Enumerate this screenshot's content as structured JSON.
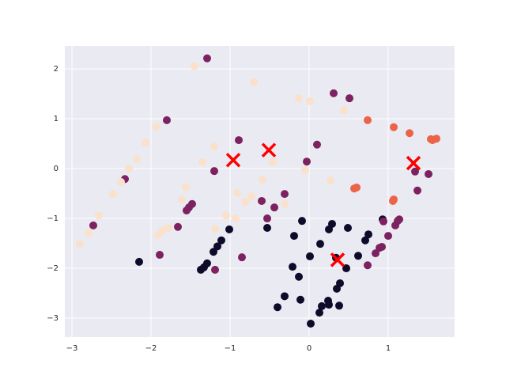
{
  "chart_data": {
    "type": "scatter",
    "xlim": [
      -3.09,
      1.84
    ],
    "ylim": [
      -3.38,
      2.46
    ],
    "xticks": [
      {
        "value": -3,
        "label": "−3"
      },
      {
        "value": -2,
        "label": "−2"
      },
      {
        "value": -1,
        "label": "−1"
      },
      0,
      1
    ],
    "yticks": [
      {
        "value": -3,
        "label": "−3"
      },
      {
        "value": -2,
        "label": "−2"
      },
      {
        "value": -1,
        "label": "−1"
      },
      0,
      1,
      2
    ],
    "grid": true,
    "series": [
      {
        "color": "#0d0b29",
        "marker": "o",
        "x": [
          -2.15,
          -1.37,
          -1.33,
          -1.29,
          -1.21,
          -1.16,
          -1.11,
          -1.01,
          -0.53,
          -0.09,
          -0.19,
          -0.21,
          -0.13,
          -0.31,
          -0.4,
          -0.11,
          0.02,
          0.01,
          0.14,
          0.25,
          0.29,
          0.49,
          0.13,
          0.16,
          0.24,
          0.25,
          0.35,
          0.39,
          0.38,
          0.47,
          0.34,
          0.62,
          0.71,
          0.75,
          0.93
        ],
        "y": [
          -1.87,
          -2.03,
          -1.98,
          -1.9,
          -1.67,
          -1.56,
          -1.44,
          -1.22,
          -1.19,
          -1.05,
          -1.35,
          -1.97,
          -2.17,
          -2.56,
          -2.78,
          -2.63,
          -3.11,
          -1.76,
          -1.51,
          -1.22,
          -1.11,
          -1.19,
          -2.89,
          -2.76,
          -2.65,
          -2.73,
          -2.41,
          -2.3,
          -2.75,
          -2.0,
          -1.79,
          -1.75,
          -1.44,
          -1.32,
          -1.02
        ]
      },
      {
        "color": "#7d2260",
        "marker": "o",
        "x": [
          -1.29,
          -1.8,
          -2.33,
          -2.73,
          -1.89,
          -1.66,
          -1.55,
          -1.52,
          -1.48,
          -1.2,
          -0.89,
          -0.6,
          -0.53,
          -0.44,
          -0.31,
          -0.85,
          -1.19,
          -0.03,
          0.1,
          0.31,
          0.51,
          0.74,
          0.84,
          0.89,
          0.92,
          0.94,
          1.0,
          1.09,
          1.12,
          1.14,
          1.34,
          1.37,
          1.51
        ],
        "y": [
          2.21,
          0.97,
          -0.21,
          -1.14,
          -1.73,
          -1.17,
          -0.84,
          -0.78,
          -0.71,
          -0.05,
          0.57,
          -0.65,
          -1.0,
          -0.78,
          -0.51,
          -1.78,
          -2.03,
          0.14,
          0.48,
          1.51,
          1.41,
          -1.94,
          -1.7,
          -1.59,
          -1.57,
          -1.06,
          -1.35,
          -1.14,
          -1.05,
          -1.02,
          -0.06,
          -0.44,
          -0.11
        ]
      },
      {
        "color": "#fae1cb",
        "marker": "o",
        "x": [
          -1.45,
          -0.7,
          -0.13,
          0.01,
          0.44,
          -1.93,
          -2.07,
          -2.18,
          -2.28,
          -2.38,
          -2.48,
          -2.66,
          -2.79,
          -2.9,
          -1.86,
          -1.78,
          -1.91,
          -1.56,
          -1.61,
          -1.35,
          -1.2,
          -1.05,
          -0.93,
          -1.19,
          -0.91,
          -0.81,
          -0.73,
          -0.59,
          -0.46,
          -0.31,
          -0.05,
          0.27
        ],
        "y": [
          2.05,
          1.73,
          1.41,
          1.35,
          1.17,
          0.84,
          0.52,
          0.19,
          0.0,
          -0.27,
          -0.51,
          -0.94,
          -1.29,
          -1.52,
          -1.25,
          -1.19,
          -1.33,
          -0.37,
          -0.62,
          0.13,
          0.44,
          -0.94,
          -1.0,
          -1.21,
          -0.49,
          -0.67,
          -0.56,
          -0.22,
          0.13,
          -0.71,
          -0.03,
          -0.24
        ]
      },
      {
        "color": "#ec6448",
        "marker": "o",
        "x": [
          0.74,
          1.07,
          1.27,
          1.54,
          1.61,
          1.56,
          1.07,
          1.06,
          0.6,
          0.57
        ],
        "y": [
          0.97,
          0.83,
          0.71,
          0.59,
          0.6,
          0.57,
          -0.62,
          -0.65,
          -0.38,
          -0.4
        ]
      },
      {
        "color": "#ff0000",
        "marker": "x",
        "x": [
          -0.96,
          -0.51,
          1.32,
          0.36
        ],
        "y": [
          0.17,
          0.37,
          0.11,
          -1.83
        ]
      }
    ]
  }
}
